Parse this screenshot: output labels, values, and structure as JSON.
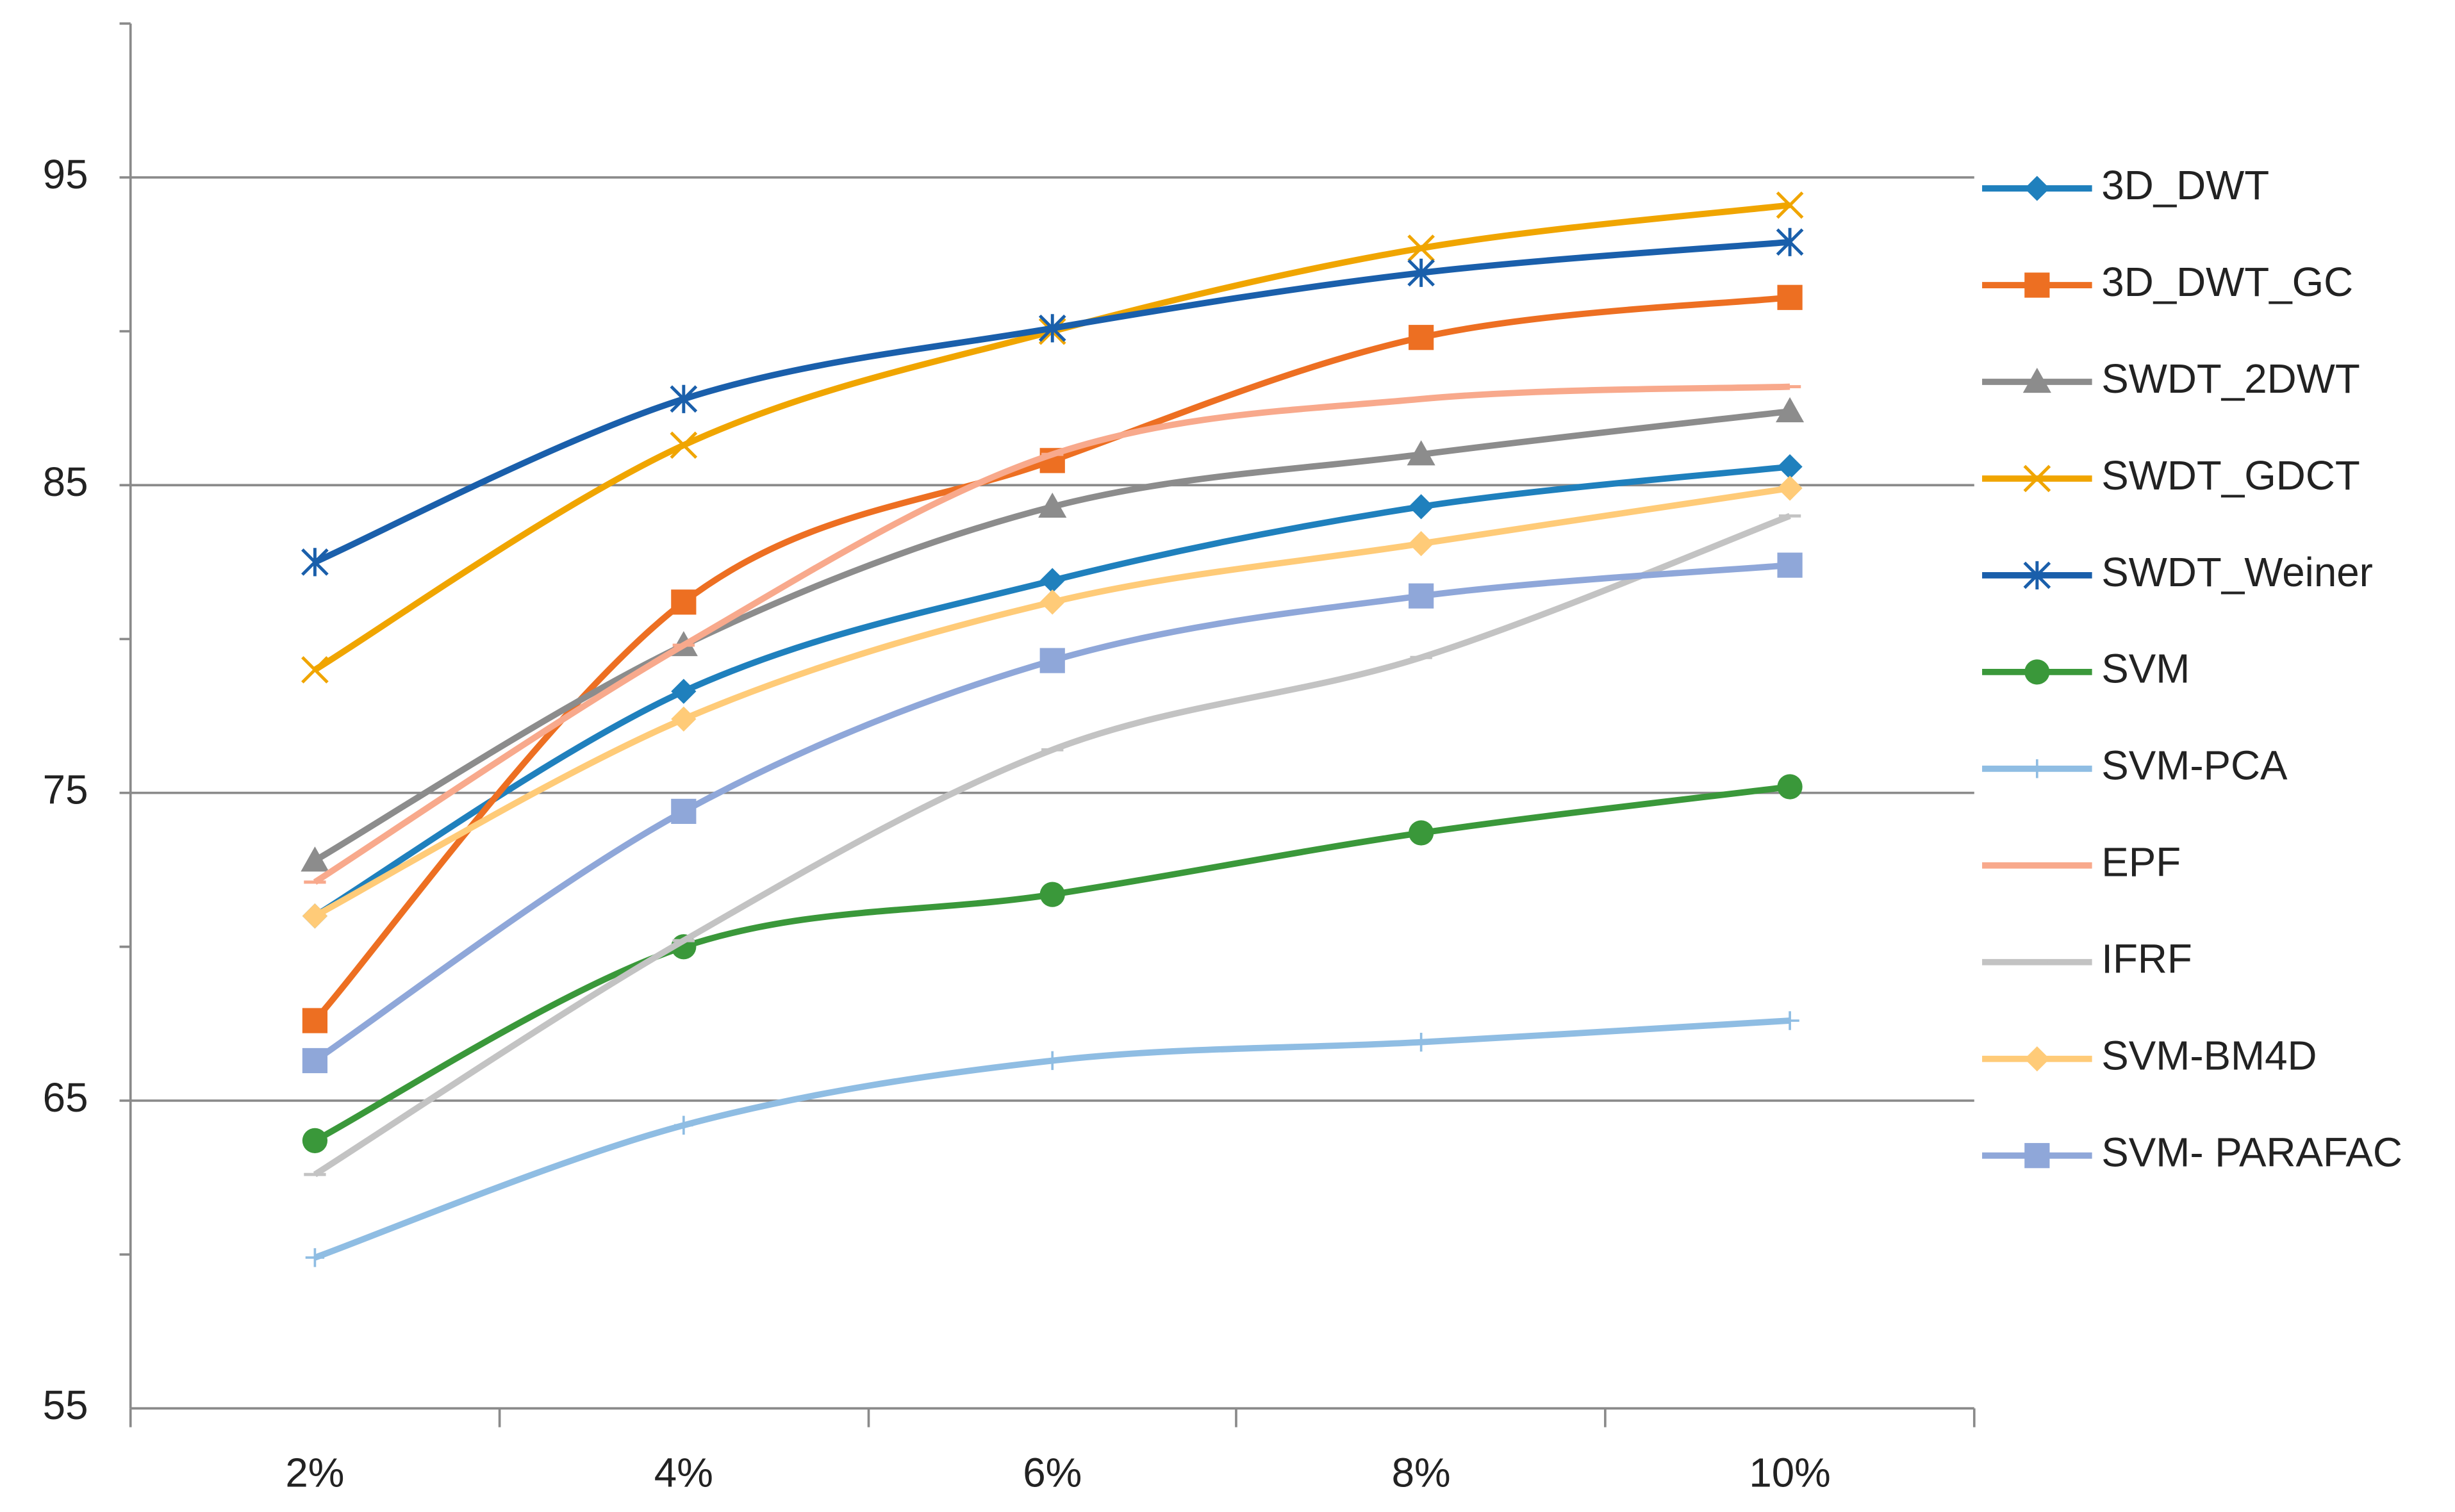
{
  "chart_data": {
    "type": "line",
    "categories": [
      "2%",
      "4%",
      "6%",
      "8%",
      "10%"
    ],
    "ylim": [
      55,
      100
    ],
    "yticks": [
      55,
      65,
      75,
      85,
      95
    ],
    "grid": true,
    "smooth": true,
    "legend": "right",
    "series": [
      {
        "name": "3D_DWT",
        "color": "#1f80bd",
        "marker": "diamond",
        "values": [
          71.0,
          78.3,
          81.9,
          84.3,
          85.6
        ]
      },
      {
        "name": "3D_DWT_GC",
        "color": "#ed6f22",
        "marker": "square",
        "values": [
          67.6,
          81.2,
          85.8,
          89.8,
          91.1
        ]
      },
      {
        "name": "SWDT_2DWT",
        "color": "#8c8c8c",
        "marker": "triangle",
        "values": [
          72.8,
          79.8,
          84.3,
          86.0,
          87.4
        ]
      },
      {
        "name": "SWDT_GDCT",
        "color": "#f0a500",
        "marker": "x",
        "values": [
          79.0,
          86.3,
          90.0,
          92.7,
          94.1
        ]
      },
      {
        "name": "SWDT_Weiner",
        "color": "#1a5fab",
        "marker": "star",
        "values": [
          82.5,
          87.8,
          90.1,
          91.9,
          92.9
        ]
      },
      {
        "name": "SVM",
        "color": "#3a983a",
        "marker": "circle",
        "values": [
          63.7,
          70.0,
          71.7,
          73.7,
          75.2
        ]
      },
      {
        "name": "SVM-PCA",
        "color": "#8fbde3",
        "marker": "plus",
        "values": [
          59.9,
          64.2,
          66.3,
          66.9,
          67.6
        ]
      },
      {
        "name": "EPF",
        "color": "#f8a98c",
        "marker": "dash",
        "values": [
          72.1,
          79.8,
          86.0,
          87.8,
          88.2
        ]
      },
      {
        "name": "IFRF",
        "color": "#c3c3c3",
        "marker": "dash",
        "values": [
          62.6,
          70.2,
          76.4,
          79.4,
          84.0
        ]
      },
      {
        "name": "SVM-BM4D",
        "color": "#ffcb78",
        "marker": "diamond",
        "values": [
          71.0,
          77.4,
          81.2,
          83.1,
          84.9
        ]
      },
      {
        "name": "SVM- PARAFAC",
        "color": "#8fa7d9",
        "marker": "square",
        "values": [
          66.3,
          74.4,
          79.3,
          81.4,
          82.4
        ]
      }
    ]
  }
}
